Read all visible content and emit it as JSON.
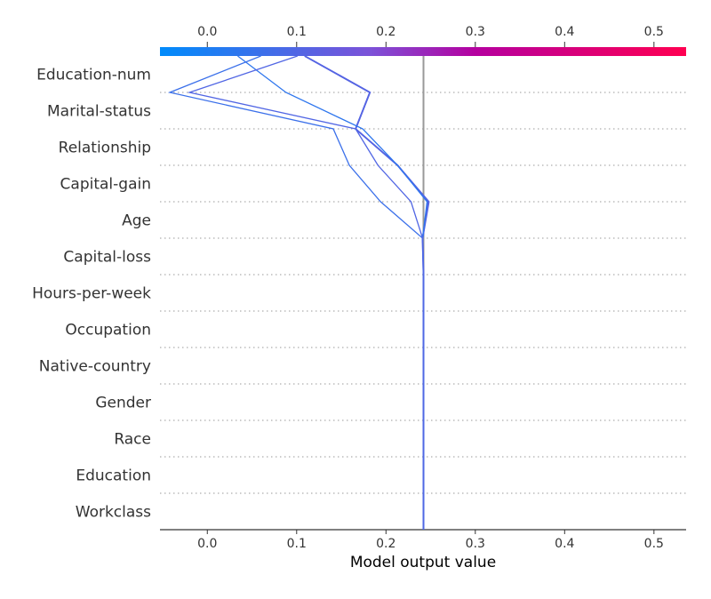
{
  "chart_data": {
    "type": "line",
    "subtype": "shap-decision-plot",
    "xlabel": "Model output value",
    "xlim": [
      -0.053,
      0.536
    ],
    "xticks": [
      "0.0",
      "0.1",
      "0.2",
      "0.3",
      "0.4",
      "0.5"
    ],
    "xtick_values": [
      0.0,
      0.1,
      0.2,
      0.3,
      0.4,
      0.5
    ],
    "base_value": 0.242,
    "features": [
      "Education-num",
      "Marital-status",
      "Relationship",
      "Capital-gain",
      "Age",
      "Capital-loss",
      "Hours-per-week",
      "Occupation",
      "Native-country",
      "Gender",
      "Race",
      "Education",
      "Workclass"
    ],
    "colorbar": {
      "colors": [
        "#008bfb",
        "#7c52d8",
        "#ff0051"
      ]
    },
    "grid": "dotted horizontal",
    "series": [
      {
        "values": [
          0.109,
          0.182,
          0.166,
          0.213,
          0.248,
          0.241,
          0.242,
          0.242,
          0.242,
          0.242,
          0.242,
          0.242,
          0.242,
          0.242
        ]
      },
      {
        "values": [
          0.109,
          0.182,
          0.166,
          0.213,
          0.247,
          0.241,
          0.242,
          0.242,
          0.242,
          0.242,
          0.242,
          0.242,
          0.242,
          0.242
        ]
      },
      {
        "values": [
          0.034,
          0.088,
          0.174,
          0.213,
          0.246,
          0.241,
          0.242,
          0.242,
          0.242,
          0.242,
          0.242,
          0.242,
          0.242,
          0.242
        ]
      },
      {
        "values": [
          0.06,
          -0.042,
          0.141,
          0.159,
          0.194,
          0.241,
          0.242,
          0.242,
          0.242,
          0.242,
          0.242,
          0.242,
          0.242,
          0.242
        ]
      },
      {
        "values": [
          0.101,
          -0.02,
          0.166,
          0.191,
          0.228,
          0.241,
          0.242,
          0.242,
          0.242,
          0.242,
          0.242,
          0.242,
          0.242,
          0.242
        ]
      }
    ]
  }
}
